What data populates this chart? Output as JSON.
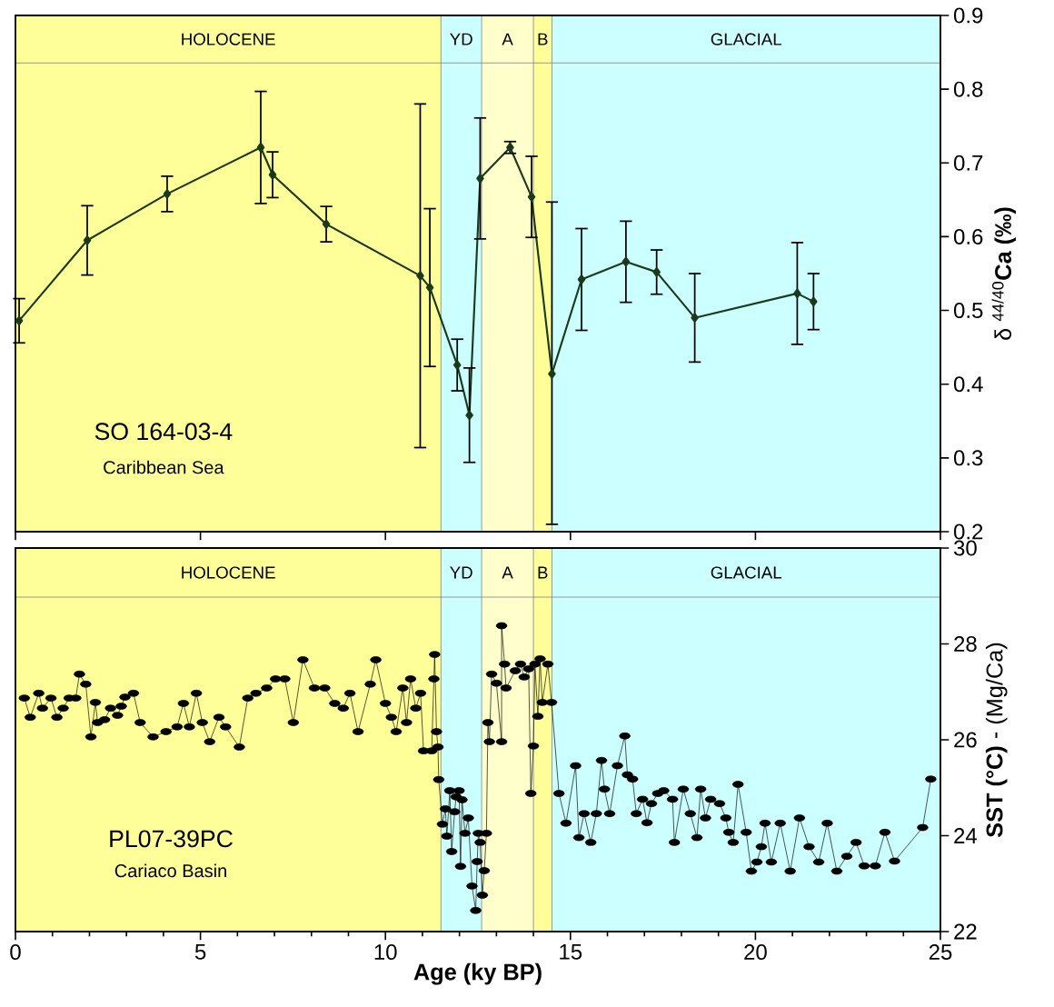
{
  "chart_data": [
    {
      "type": "line",
      "ylabel": "δ $^{44/40}$**Ca (‰)**",
      "xlim": [
        0,
        25
      ],
      "xticks": [
        0,
        5,
        10,
        15,
        20,
        25
      ],
      "ylim": [
        0.2,
        0.9
      ],
      "yticks": [
        0.2,
        0.3,
        0.4,
        0.5,
        0.6,
        0.7,
        0.8,
        0.9
      ],
      "tick_labels": "y",
      "marker": "diamond",
      "x": [
        0.1,
        1.94,
        4.1,
        6.63,
        6.95,
        8.4,
        10.94,
        11.2,
        11.94,
        12.27,
        12.56,
        13.37,
        13.95,
        14.5,
        15.3,
        16.5,
        17.33,
        18.36,
        21.13,
        21.57
      ],
      "series": [
        {
          "color": "#1a3a1a",
          "values": [
            0.486,
            0.595,
            0.658,
            0.721,
            0.684,
            0.617,
            0.547,
            0.531,
            0.426,
            0.358,
            0.679,
            0.721,
            0.654,
            0.414,
            0.542,
            0.566,
            0.552,
            0.49,
            0.523,
            0.512
          ],
          "errors": [
            0.03,
            0.047,
            0.024,
            0.076,
            0.031,
            0.024,
            0.233,
            0.107,
            0.035,
            0.064,
            0.082,
            0.008,
            0.055,
            [
              0.21,
              0.647
            ],
            0.069,
            0.055,
            0.03,
            0.06,
            0.069,
            0.038
          ]
        }
      ],
      "bands": [
        {
          "axis": "x",
          "from": 0,
          "to": 11.5,
          "label": "HOLOCENE",
          "color": "#ffff99"
        },
        {
          "axis": "x",
          "from": 11.5,
          "to": 12.6,
          "label": "YD",
          "color": "#ccffff"
        },
        {
          "axis": "x",
          "from": 12.6,
          "to": 14.0,
          "label": "A",
          "color": "#ffffcc"
        },
        {
          "axis": "x",
          "from": 14.0,
          "to": 14.5,
          "label": "B",
          "color": "#ffff99"
        },
        {
          "axis": "x",
          "from": 14.5,
          "to": 25,
          "label": "GLACIAL",
          "color": "#ccffff"
        }
      ],
      "annotations": [
        "SO 164-03-4",
        "Caribbean Sea"
      ]
    },
    {
      "type": "line",
      "xlabel": "Age (ky BP)",
      "ylabel": "**SST (°C)**  -  (Mg/Ca)",
      "xlim": [
        0,
        25
      ],
      "xticks": [
        0,
        5,
        10,
        15,
        20,
        25
      ],
      "ylim": [
        22,
        30
      ],
      "yticks": [
        22,
        24,
        26,
        28,
        30
      ],
      "marker": "circle",
      "x": [
        0.24,
        0.4,
        0.63,
        0.73,
        0.96,
        1.12,
        1.29,
        1.45,
        1.63,
        1.73,
        1.9,
        2.04,
        2.16,
        2.22,
        2.41,
        2.57,
        2.76,
        2.86,
        2.96,
        3.19,
        3.37,
        3.72,
        4.07,
        4.37,
        4.54,
        4.7,
        4.89,
        5.05,
        5.25,
        5.5,
        5.68,
        6.05,
        6.28,
        6.5,
        6.79,
        7.03,
        7.28,
        7.51,
        7.77,
        8.08,
        8.36,
        8.63,
        8.86,
        9.04,
        9.26,
        9.59,
        9.74,
        10.0,
        10.16,
        10.29,
        10.47,
        10.57,
        10.68,
        10.82,
        10.95,
        11.03,
        11.25,
        11.31,
        11.33,
        11.38,
        11.42,
        11.44,
        11.54,
        11.62,
        11.66,
        11.74,
        11.79,
        11.87,
        11.91,
        11.99,
        12.03,
        12.07,
        12.15,
        12.24,
        12.34,
        12.44,
        12.48,
        12.51,
        12.56,
        12.62,
        12.67,
        12.73,
        12.77,
        12.81,
        12.87,
        13.0,
        13.14,
        13.14,
        13.22,
        13.26,
        13.51,
        13.65,
        13.75,
        13.87,
        13.93,
        14.0,
        14.04,
        14.12,
        14.18,
        14.24,
        14.39,
        14.49,
        14.69,
        14.88,
        15.14,
        15.23,
        15.37,
        15.55,
        15.7,
        15.84,
        15.92,
        16.06,
        16.27,
        16.47,
        16.54,
        16.68,
        16.78,
        16.95,
        17.07,
        17.19,
        17.36,
        17.52,
        17.76,
        17.81,
        18.05,
        18.24,
        18.42,
        18.52,
        18.65,
        18.79,
        19.03,
        19.2,
        19.28,
        19.4,
        19.53,
        19.75,
        19.89,
        20.04,
        20.16,
        20.26,
        20.43,
        20.67,
        20.94,
        21.19,
        21.45,
        21.71,
        21.94,
        22.2,
        22.47,
        22.72,
        22.94,
        23.24,
        23.5,
        23.76,
        24.52,
        24.74
      ],
      "series": [
        {
          "color": "#000000",
          "values": [
            26.87,
            26.47,
            26.97,
            26.66,
            26.87,
            26.47,
            26.66,
            26.87,
            26.87,
            27.37,
            27.16,
            26.06,
            26.78,
            26.36,
            26.42,
            26.66,
            26.51,
            26.7,
            26.89,
            26.97,
            26.36,
            26.06,
            26.17,
            26.27,
            26.76,
            26.27,
            26.97,
            26.36,
            25.96,
            26.47,
            26.27,
            25.85,
            26.87,
            26.97,
            27.08,
            27.27,
            27.27,
            26.36,
            27.67,
            27.08,
            27.08,
            26.76,
            26.66,
            26.97,
            26.17,
            27.16,
            27.67,
            26.76,
            26.47,
            26.17,
            27.08,
            26.36,
            27.27,
            26.66,
            26.97,
            25.77,
            25.77,
            27.27,
            27.78,
            26.17,
            25.85,
            25.17,
            24.24,
            24.56,
            23.99,
            24.94,
            23.67,
            24.5,
            24.81,
            24.94,
            23.36,
            24.75,
            24.05,
            24.37,
            22.95,
            22.44,
            23.46,
            24.05,
            23.86,
            22.76,
            23.27,
            24.05,
            26.36,
            25.96,
            27.37,
            27.18,
            25.96,
            28.38,
            27.58,
            27.08,
            27.44,
            27.58,
            27.31,
            27.48,
            24.88,
            25.87,
            27.58,
            26.49,
            27.69,
            26.78,
            27.58,
            26.78,
            24.88,
            24.26,
            25.46,
            23.96,
            24.46,
            23.86,
            24.46,
            25.57,
            24.97,
            24.46,
            25.46,
            26.08,
            25.27,
            25.18,
            24.46,
            24.76,
            24.27,
            24.67,
            24.88,
            24.94,
            24.76,
            23.86,
            24.97,
            24.46,
            23.96,
            24.97,
            24.37,
            24.76,
            24.67,
            24.37,
            24.07,
            23.86,
            25.07,
            24.07,
            23.26,
            23.45,
            23.77,
            24.26,
            23.45,
            24.26,
            23.26,
            24.37,
            23.77,
            23.45,
            24.26,
            23.26,
            23.57,
            23.86,
            23.37,
            23.37,
            24.07,
            23.47,
            24.17,
            25.18
          ]
        }
      ],
      "bands": [
        {
          "axis": "x",
          "from": 0,
          "to": 11.5,
          "label": "HOLOCENE",
          "color": "#ffff99"
        },
        {
          "axis": "x",
          "from": 11.5,
          "to": 12.6,
          "label": "YD",
          "color": "#ccffff"
        },
        {
          "axis": "x",
          "from": 12.6,
          "to": 14.0,
          "label": "A",
          "color": "#ffffcc"
        },
        {
          "axis": "x",
          "from": 14.0,
          "to": 14.5,
          "label": "B",
          "color": "#ffff99"
        },
        {
          "axis": "x",
          "from": 14.5,
          "to": 25,
          "label": "GLACIAL",
          "color": "#ccffff"
        }
      ],
      "annotations": [
        "PL07-39PC",
        "Cariaco Basin"
      ]
    }
  ]
}
